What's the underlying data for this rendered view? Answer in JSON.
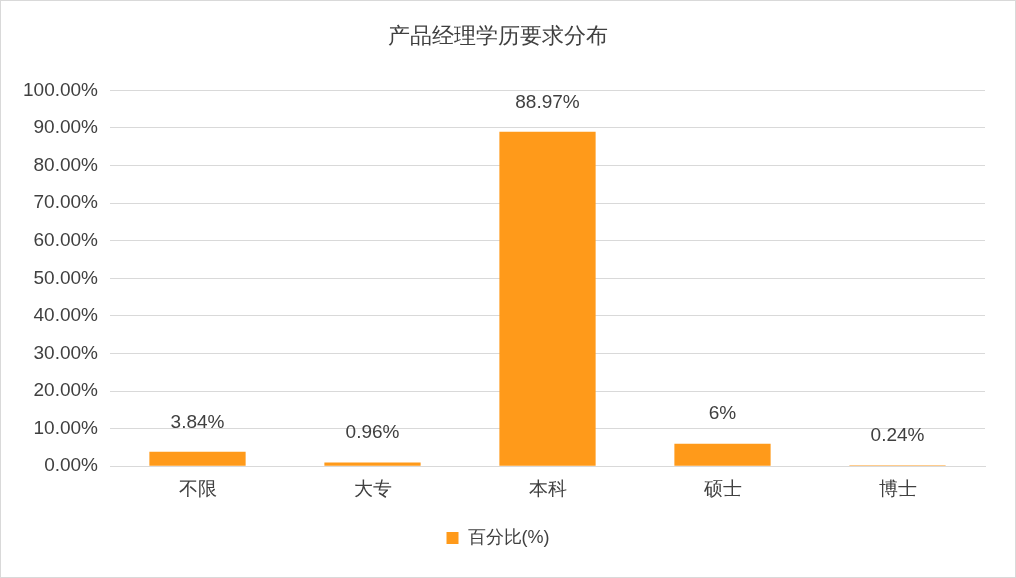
{
  "chart_data": {
    "type": "bar",
    "title": "产品经理学历要求分布",
    "categories": [
      "不限",
      "大专",
      "本科",
      "硕士",
      "博士"
    ],
    "series": [
      {
        "name": "百分比(%)",
        "color": "#ff9a1a",
        "values": [
          3.84,
          0.96,
          88.97,
          6,
          0.24
        ]
      }
    ],
    "value_labels": [
      "3.84%",
      "0.96%",
      "88.97%",
      "6%",
      "0.24%"
    ],
    "ylim": [
      0,
      100
    ],
    "yticks": [
      {
        "value": 0,
        "label": "0.00%"
      },
      {
        "value": 10,
        "label": "10.00%"
      },
      {
        "value": 20,
        "label": "20.00%"
      },
      {
        "value": 30,
        "label": "30.00%"
      },
      {
        "value": 40,
        "label": "40.00%"
      },
      {
        "value": 50,
        "label": "50.00%"
      },
      {
        "value": 60,
        "label": "60.00%"
      },
      {
        "value": 70,
        "label": "70.00%"
      },
      {
        "value": 80,
        "label": "80.00%"
      },
      {
        "value": 90,
        "label": "90.00%"
      },
      {
        "value": 100,
        "label": "100.00%"
      }
    ],
    "grid": "y",
    "legend": "bottom"
  }
}
